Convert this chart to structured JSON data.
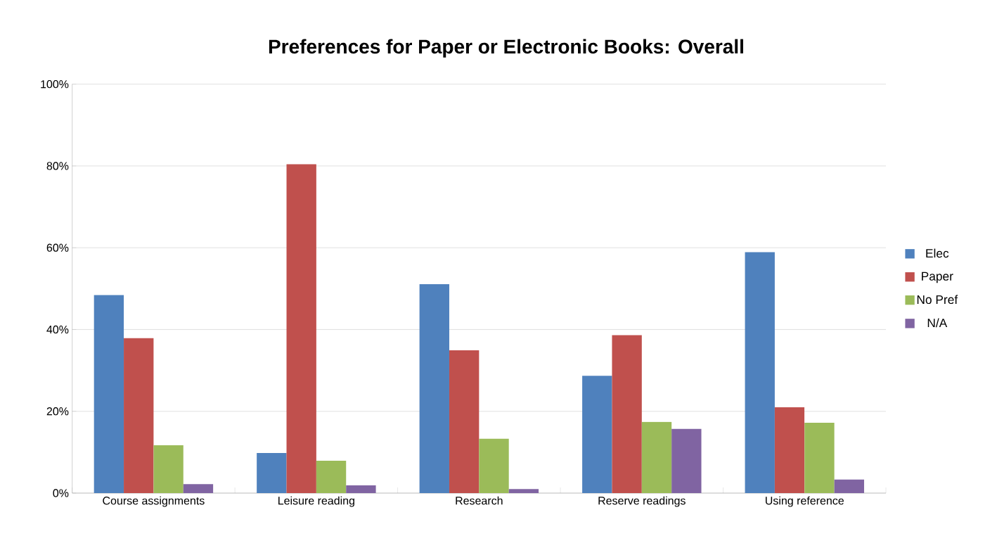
{
  "chart_data": {
    "type": "bar",
    "title": "Preferences for Paper or Electronic Books: Overall",
    "categories": [
      "Course assignments",
      "Leisure reading",
      "Research",
      "Reserve readings",
      "Using reference"
    ],
    "series": [
      {
        "name": "Elec",
        "color": "#4f81bd",
        "values": [
          48.4,
          9.8,
          51.1,
          28.7,
          58.9
        ]
      },
      {
        "name": "Paper",
        "color": "#c0504d",
        "values": [
          37.9,
          80.4,
          34.9,
          38.6,
          21.0
        ]
      },
      {
        "name": "No Pref",
        "color": "#9bbb59",
        "values": [
          11.7,
          7.9,
          13.3,
          17.4,
          17.2
        ]
      },
      {
        "name": "N/A",
        "color": "#8064a2",
        "values": [
          2.2,
          1.9,
          1.0,
          15.7,
          3.3
        ]
      }
    ],
    "ylim": [
      0,
      100
    ],
    "yticks": [
      {
        "value": 0,
        "label": "0%"
      },
      {
        "value": 20,
        "label": "20%"
      },
      {
        "value": 40,
        "label": "40%"
      },
      {
        "value": 60,
        "label": "60%"
      },
      {
        "value": 80,
        "label": "80%"
      },
      {
        "value": 100,
        "label": "100%"
      }
    ],
    "grid": "y",
    "legend": "right"
  }
}
